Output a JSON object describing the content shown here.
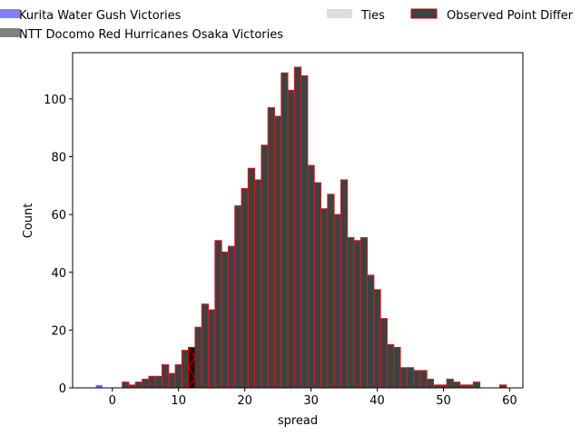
{
  "chart_data": {
    "type": "bar",
    "xlabel": "spread",
    "ylabel": "Count",
    "xlim": [
      -6,
      62
    ],
    "ylim": [
      0,
      116
    ],
    "xticks": [
      "0",
      "10",
      "20",
      "30",
      "40",
      "50",
      "60"
    ],
    "yticks": [
      "0",
      "20",
      "40",
      "60",
      "80",
      "100"
    ],
    "legend_placement": "top, above plot",
    "legend": [
      {
        "label": "Kurita Water Gush Victories",
        "color": "#8080ff"
      },
      {
        "label": "NTT Docomo Red Hurricanes Osaka Victories",
        "color": "#808080"
      },
      {
        "label": "Ties",
        "color": "#dddddd"
      },
      {
        "label": "Observed Point Differ",
        "color": "#404040",
        "edge": "#cc0000"
      }
    ],
    "series": [
      {
        "name": "Kurita Water Gush Victories",
        "color": "#6a6aff",
        "bins": [
          [
            -2,
            1
          ]
        ]
      },
      {
        "name": "NTT Docomo Red Hurricanes Osaka Victories",
        "color": "#404040",
        "edge": "#cc2020",
        "bins": [
          [
            2,
            2
          ],
          [
            3,
            1
          ],
          [
            4,
            2
          ],
          [
            5,
            3
          ],
          [
            6,
            4
          ],
          [
            7,
            4
          ],
          [
            8,
            8
          ],
          [
            9,
            5
          ],
          [
            10,
            8
          ],
          [
            11,
            13
          ],
          [
            12,
            14
          ],
          [
            13,
            21
          ],
          [
            14,
            29
          ],
          [
            15,
            27
          ],
          [
            16,
            51
          ],
          [
            17,
            47
          ],
          [
            18,
            49
          ],
          [
            19,
            63
          ],
          [
            20,
            69
          ],
          [
            21,
            76
          ],
          [
            22,
            72
          ],
          [
            23,
            84
          ],
          [
            24,
            97
          ],
          [
            25,
            94
          ],
          [
            26,
            109
          ],
          [
            27,
            103
          ],
          [
            28,
            111
          ],
          [
            29,
            108
          ],
          [
            30,
            77
          ],
          [
            31,
            71
          ],
          [
            32,
            62
          ],
          [
            33,
            67
          ],
          [
            34,
            60
          ],
          [
            35,
            72
          ],
          [
            36,
            52
          ],
          [
            37,
            51
          ],
          [
            38,
            52
          ],
          [
            39,
            39
          ],
          [
            40,
            34
          ],
          [
            41,
            24
          ],
          [
            42,
            15
          ],
          [
            43,
            14
          ],
          [
            44,
            7
          ],
          [
            45,
            7
          ],
          [
            46,
            6
          ],
          [
            47,
            6
          ],
          [
            48,
            3
          ],
          [
            49,
            1
          ],
          [
            50,
            1
          ],
          [
            51,
            3
          ],
          [
            52,
            2
          ],
          [
            53,
            1
          ],
          [
            54,
            1
          ],
          [
            55,
            2
          ],
          [
            59,
            1
          ]
        ]
      }
    ],
    "observed": {
      "x": 12,
      "value": 14
    }
  }
}
